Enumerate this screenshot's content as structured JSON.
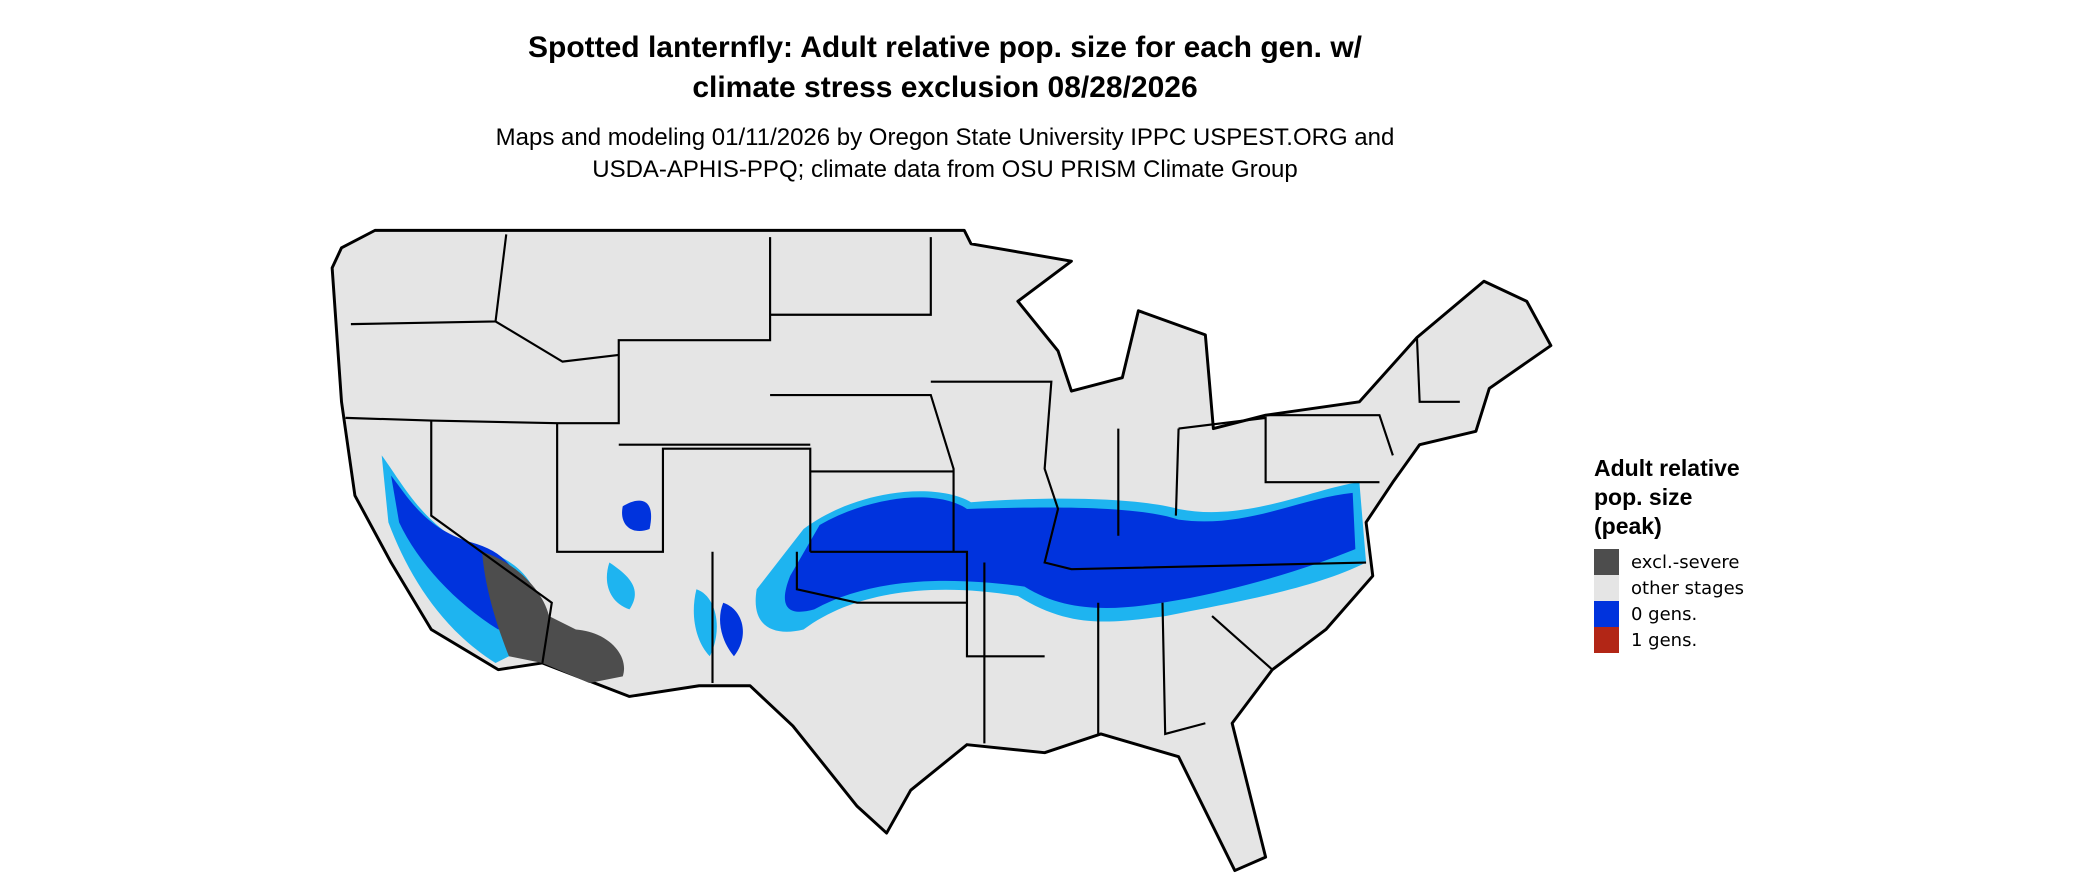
{
  "title_lines": [
    "Spotted lanternfly: Adult relative pop. size for each gen. w/",
    "climate stress exclusion 08/28/2026"
  ],
  "subtitle_lines": [
    "Maps and modeling 01/11/2026 by Oregon State University IPPC USPEST.ORG and",
    "USDA-APHIS-PPQ; climate data from OSU PRISM Climate Group"
  ],
  "legend": {
    "title_lines": [
      "Adult relative",
      "pop. size",
      "(peak)"
    ],
    "items": [
      {
        "label": "excl.-severe",
        "color": "#4d4d4d"
      },
      {
        "label": "other stages",
        "color": "#e5e5e5"
      },
      {
        "label": "0 gens.",
        "color": "#0033dd"
      },
      {
        "label": "1 gens.",
        "color": "#b22616"
      }
    ]
  },
  "colors": {
    "land": "#e5e5e5",
    "border": "#000000",
    "fringe": "#1eb4f0",
    "zero_gens": "#0033dd",
    "excluded": "#4d4d4d"
  }
}
